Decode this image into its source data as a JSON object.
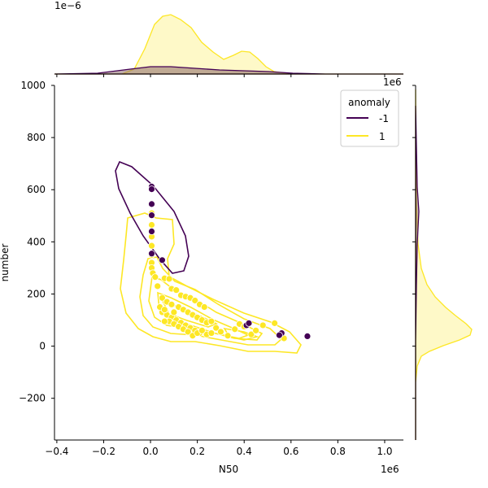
{
  "chart_data": {
    "type": "scatter",
    "xlabel": "N50",
    "ylabel": "number",
    "x_offset_label": "1e6",
    "y_offset_label_top_marginal": "1e−6",
    "y_offset_label_right_marginal": "1e6",
    "xlim": [
      -0.41,
      1.08
    ],
    "ylim": [
      -360,
      1000
    ],
    "x_tick_labels": [
      "−0.4",
      "−0.2",
      "0.0",
      "0.2",
      "0.4",
      "0.6",
      "0.8",
      "1.0"
    ],
    "x_tick_values": [
      -0.4,
      -0.2,
      0.0,
      0.2,
      0.4,
      0.6,
      0.8,
      1.0
    ],
    "y_tick_labels": [
      "−200",
      "0",
      "200",
      "400",
      "600",
      "800",
      "1000"
    ],
    "y_tick_values": [
      -200,
      0,
      200,
      400,
      600,
      800,
      1000
    ],
    "legend": {
      "title": "anomaly",
      "placement": "top-right"
    },
    "colors": {
      "anomaly_neg": "#440154",
      "anomaly_pos": "#fde725"
    },
    "series": [
      {
        "name": "-1",
        "color": "#440154",
        "points": [
          [
            0.005,
            612
          ],
          [
            0.005,
            602
          ],
          [
            0.005,
            545
          ],
          [
            0.005,
            502
          ],
          [
            0.005,
            440
          ],
          [
            0.005,
            355
          ],
          [
            0.05,
            330
          ],
          [
            0.41,
            80
          ],
          [
            0.42,
            88
          ],
          [
            0.56,
            50
          ],
          [
            0.55,
            42
          ],
          [
            0.67,
            38
          ]
        ]
      },
      {
        "name": "1",
        "color": "#fde725",
        "points": [
          [
            0.005,
            510
          ],
          [
            0.005,
            465
          ],
          [
            0.005,
            420
          ],
          [
            0.005,
            385
          ],
          [
            0.005,
            350
          ],
          [
            0.005,
            320
          ],
          [
            0.005,
            300
          ],
          [
            0.01,
            280
          ],
          [
            0.02,
            265
          ],
          [
            0.03,
            230
          ],
          [
            0.06,
            260
          ],
          [
            0.08,
            258
          ],
          [
            0.09,
            220
          ],
          [
            0.11,
            215
          ],
          [
            0.13,
            195
          ],
          [
            0.15,
            190
          ],
          [
            0.17,
            185
          ],
          [
            0.19,
            175
          ],
          [
            0.21,
            160
          ],
          [
            0.23,
            150
          ],
          [
            0.05,
            185
          ],
          [
            0.07,
            170
          ],
          [
            0.09,
            160
          ],
          [
            0.12,
            150
          ],
          [
            0.14,
            140
          ],
          [
            0.16,
            130
          ],
          [
            0.18,
            120
          ],
          [
            0.2,
            110
          ],
          [
            0.22,
            100
          ],
          [
            0.24,
            90
          ],
          [
            0.05,
            130
          ],
          [
            0.07,
            120
          ],
          [
            0.09,
            110
          ],
          [
            0.11,
            100
          ],
          [
            0.13,
            90
          ],
          [
            0.15,
            80
          ],
          [
            0.17,
            70
          ],
          [
            0.19,
            60
          ],
          [
            0.21,
            50
          ],
          [
            0.24,
            45
          ],
          [
            0.04,
            150
          ],
          [
            0.06,
            140
          ],
          [
            0.08,
            95
          ],
          [
            0.1,
            85
          ],
          [
            0.12,
            75
          ],
          [
            0.14,
            65
          ],
          [
            0.16,
            55
          ],
          [
            0.18,
            40
          ],
          [
            0.2,
            50
          ],
          [
            0.22,
            60
          ],
          [
            0.26,
            95
          ],
          [
            0.28,
            70
          ],
          [
            0.3,
            55
          ],
          [
            0.26,
            50
          ],
          [
            0.33,
            40
          ],
          [
            0.36,
            65
          ],
          [
            0.38,
            85
          ],
          [
            0.4,
            75
          ],
          [
            0.43,
            45
          ],
          [
            0.45,
            60
          ],
          [
            0.48,
            80
          ],
          [
            0.53,
            88
          ],
          [
            0.57,
            30
          ],
          [
            0.06,
            95
          ],
          [
            0.1,
            130
          ]
        ]
      }
    ],
    "kde_levels": {
      "-1": [
        0.1
      ],
      "1": [
        0.03,
        0.1,
        0.2,
        0.35,
        0.5,
        0.7
      ]
    },
    "marginals": {
      "top": "kde of N50 by anomaly (stacked fill)",
      "right": "kde of number by anomaly (stacked fill)"
    }
  }
}
